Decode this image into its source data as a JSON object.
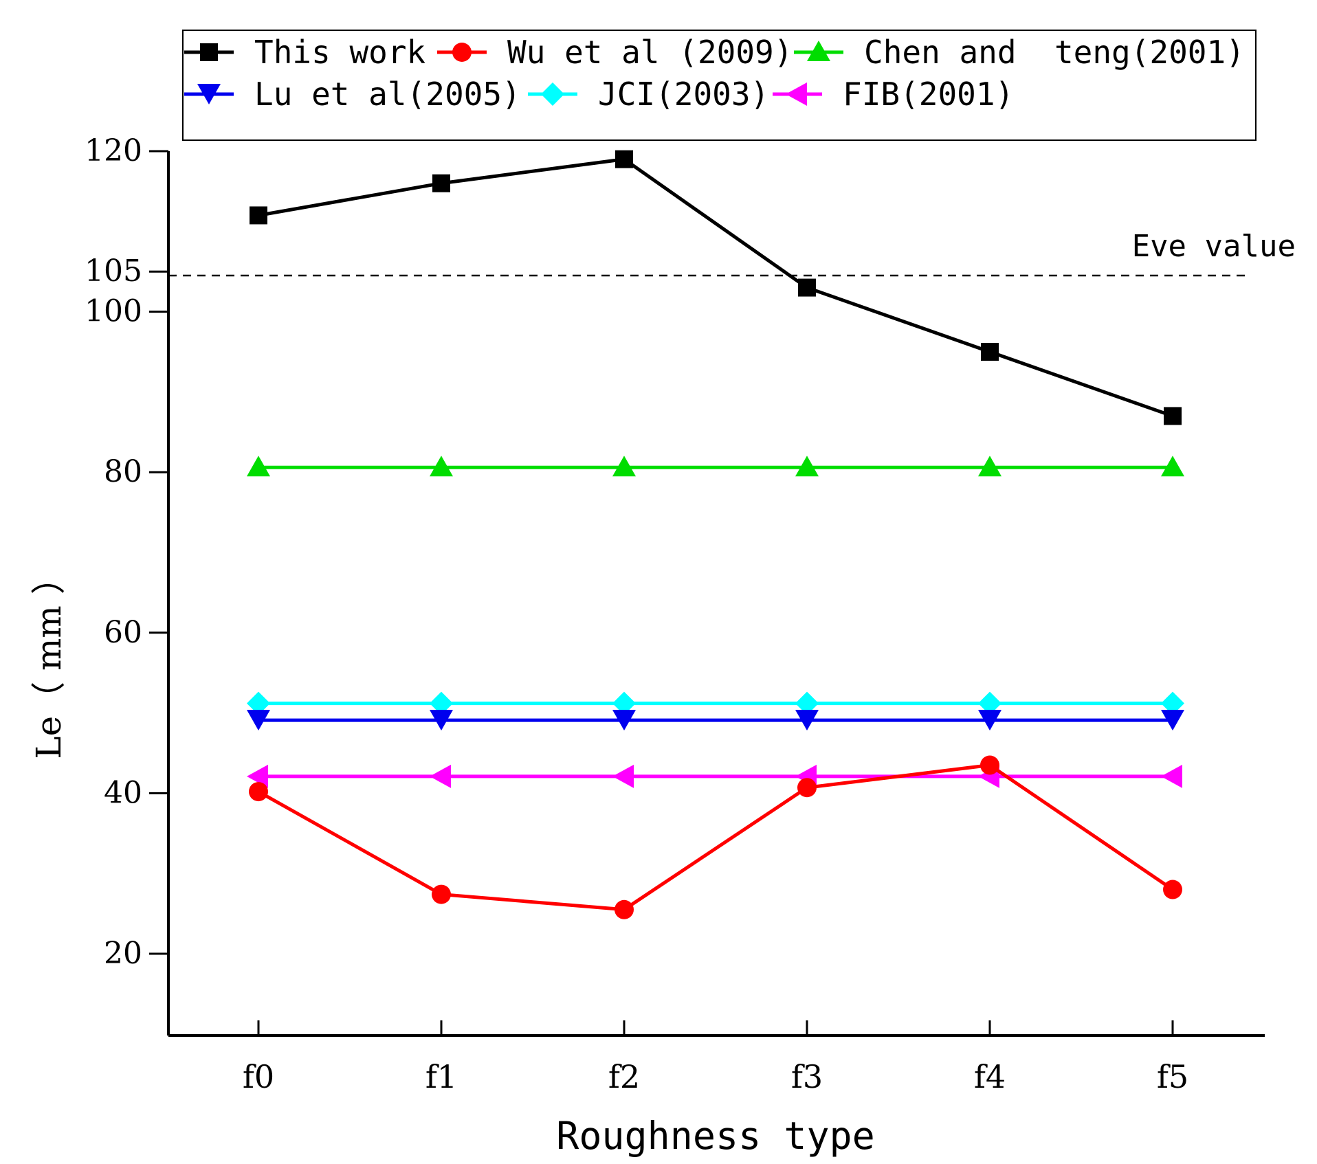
{
  "chart_data": {
    "type": "line",
    "title": "",
    "xlabel": "Roughness type",
    "ylabel": "Le（  mm  ）",
    "categories": [
      "f0",
      "f1",
      "f2",
      "f3",
      "f4",
      "f5"
    ],
    "ylim": [
      10,
      120
    ],
    "yticks": [
      20,
      40,
      60,
      80,
      100,
      105,
      120
    ],
    "grid": false,
    "legend_position": "top",
    "series": [
      {
        "name": "This work",
        "color": "#000000",
        "marker": "square",
        "values": [
          112,
          116,
          119,
          103,
          95,
          87
        ]
      },
      {
        "name": "Wu et al (2009)",
        "color": "#ff0000",
        "marker": "circle",
        "values": [
          40.2,
          27.4,
          25.5,
          40.7,
          43.5,
          28
        ]
      },
      {
        "name": "Chen and  teng(2001)",
        "color": "#00dd00",
        "marker": "triangle-up",
        "values": [
          80.6,
          80.6,
          80.6,
          80.6,
          80.6,
          80.6
        ]
      },
      {
        "name": "Lu et al(2005)",
        "color": "#0000ee",
        "marker": "triangle-down",
        "values": [
          49.1,
          49.1,
          49.1,
          49.1,
          49.1,
          49.1
        ]
      },
      {
        "name": "JCI(2003)",
        "color": "#00ffff",
        "marker": "diamond",
        "values": [
          51.2,
          51.2,
          51.2,
          51.2,
          51.2,
          51.2
        ]
      },
      {
        "name": "FIB(2001)",
        "color": "#ff00ff",
        "marker": "triangle-left",
        "values": [
          42.1,
          42.1,
          42.1,
          42.1,
          42.1,
          42.1
        ]
      }
    ],
    "reference_line": {
      "label": "Eve value",
      "value": 104.5,
      "style": "dashed"
    }
  }
}
